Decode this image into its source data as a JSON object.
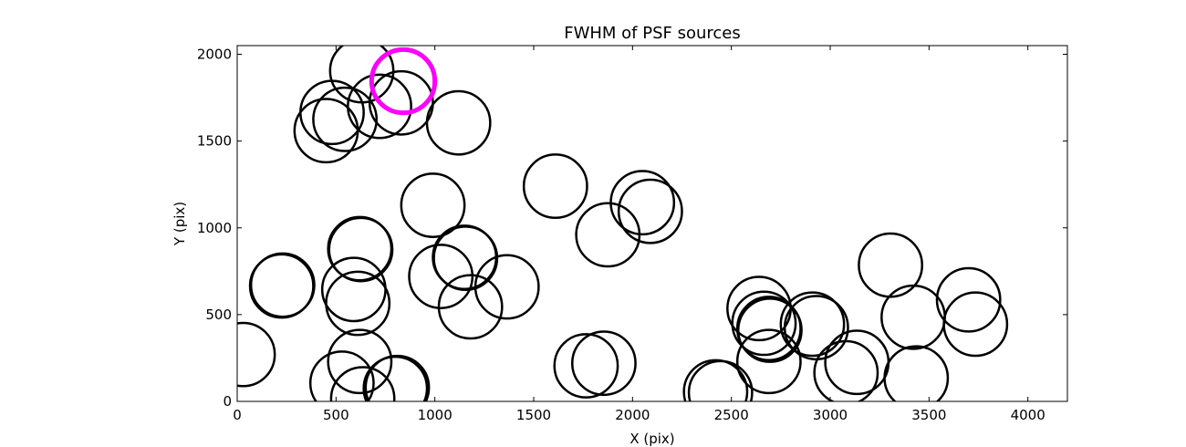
{
  "chart_data": {
    "type": "scatter",
    "title": "FWHM of PSF sources",
    "xlabel": "X (pix)",
    "ylabel": "Y (pix)",
    "xlim": [
      0,
      4200
    ],
    "ylim": [
      0,
      2050
    ],
    "xticks": [
      0,
      500,
      1000,
      1500,
      2000,
      2500,
      3000,
      3500,
      4000
    ],
    "yticks": [
      0,
      500,
      1000,
      1500,
      2000
    ],
    "grid": false,
    "marker": "open-circle",
    "marker_radius_data_x": 160,
    "default_color": "#000000",
    "highlight_color": "#ff00ff",
    "points": [
      {
        "x": 630,
        "y": 1905
      },
      {
        "x": 830,
        "y": 1720
      },
      {
        "x": 480,
        "y": 1665
      },
      {
        "x": 545,
        "y": 1625
      },
      {
        "x": 720,
        "y": 1700
      },
      {
        "x": 450,
        "y": 1560
      },
      {
        "x": 1120,
        "y": 1605
      },
      {
        "x": 840,
        "y": 1845,
        "highlight": true
      },
      {
        "x": 1610,
        "y": 1240
      },
      {
        "x": 2050,
        "y": 1145
      },
      {
        "x": 2090,
        "y": 1095
      },
      {
        "x": 1875,
        "y": 960
      },
      {
        "x": 990,
        "y": 1130
      },
      {
        "x": 620,
        "y": 880
      },
      {
        "x": 625,
        "y": 875
      },
      {
        "x": 230,
        "y": 670
      },
      {
        "x": 225,
        "y": 665
      },
      {
        "x": 1150,
        "y": 830
      },
      {
        "x": 1155,
        "y": 825
      },
      {
        "x": 1030,
        "y": 720
      },
      {
        "x": 1365,
        "y": 660
      },
      {
        "x": 1180,
        "y": 545
      },
      {
        "x": 590,
        "y": 645
      },
      {
        "x": 610,
        "y": 565
      },
      {
        "x": 30,
        "y": 270
      },
      {
        "x": 620,
        "y": 230
      },
      {
        "x": 530,
        "y": 105
      },
      {
        "x": 800,
        "y": 75
      },
      {
        "x": 810,
        "y": 80
      },
      {
        "x": 635,
        "y": 15
      },
      {
        "x": 1765,
        "y": 205
      },
      {
        "x": 1855,
        "y": 220
      },
      {
        "x": 2420,
        "y": 55
      },
      {
        "x": 2445,
        "y": 50
      },
      {
        "x": 2640,
        "y": 535
      },
      {
        "x": 2665,
        "y": 450
      },
      {
        "x": 2690,
        "y": 420
      },
      {
        "x": 2695,
        "y": 410
      },
      {
        "x": 2690,
        "y": 230
      },
      {
        "x": 2910,
        "y": 445
      },
      {
        "x": 2930,
        "y": 425
      },
      {
        "x": 3080,
        "y": 165
      },
      {
        "x": 3135,
        "y": 225
      },
      {
        "x": 3305,
        "y": 785
      },
      {
        "x": 3420,
        "y": 485
      },
      {
        "x": 3435,
        "y": 135
      },
      {
        "x": 3700,
        "y": 585
      },
      {
        "x": 3735,
        "y": 445
      }
    ]
  }
}
